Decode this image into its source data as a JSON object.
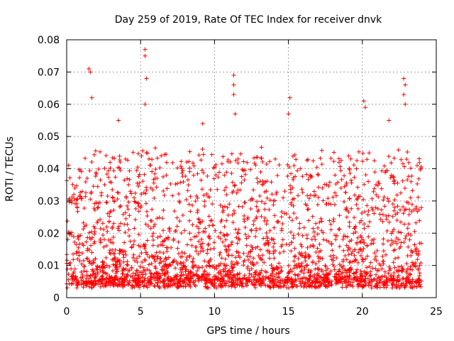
{
  "chart_data": {
    "type": "scatter",
    "title": "Day 259 of 2019, Rate Of TEC Index for receiver dnvk",
    "xlabel": "GPS time / hours",
    "ylabel": "ROTI / TECUs",
    "xlim": [
      0,
      25
    ],
    "ylim": [
      0,
      0.08
    ],
    "xticks": [
      0,
      5,
      10,
      15,
      20,
      25
    ],
    "xtick_labels": [
      "0",
      "5",
      "10",
      "15",
      "20",
      "25"
    ],
    "yticks": [
      0,
      0.01,
      0.02,
      0.03,
      0.04,
      0.05,
      0.06,
      0.07,
      0.08
    ],
    "ytick_labels": [
      "0",
      "0.01",
      "0.02",
      "0.03",
      "0.04",
      "0.05",
      "0.06",
      "0.07",
      "0.08"
    ],
    "grid": true,
    "marker": "+",
    "color": "#ff0000",
    "data_x_range": [
      0,
      24
    ],
    "typical_range": [
      0.004,
      0.045
    ],
    "notable_points": [
      {
        "x": 1.5,
        "y": 0.071
      },
      {
        "x": 1.6,
        "y": 0.07
      },
      {
        "x": 1.7,
        "y": 0.062
      },
      {
        "x": 3.5,
        "y": 0.055
      },
      {
        "x": 5.3,
        "y": 0.077
      },
      {
        "x": 5.3,
        "y": 0.075
      },
      {
        "x": 5.4,
        "y": 0.068
      },
      {
        "x": 5.3,
        "y": 0.06
      },
      {
        "x": 9.2,
        "y": 0.054
      },
      {
        "x": 11.3,
        "y": 0.069
      },
      {
        "x": 11.3,
        "y": 0.066
      },
      {
        "x": 11.3,
        "y": 0.063
      },
      {
        "x": 11.4,
        "y": 0.057
      },
      {
        "x": 15.1,
        "y": 0.062
      },
      {
        "x": 15.0,
        "y": 0.057
      },
      {
        "x": 20.1,
        "y": 0.061
      },
      {
        "x": 20.2,
        "y": 0.059
      },
      {
        "x": 21.8,
        "y": 0.055
      },
      {
        "x": 22.8,
        "y": 0.068
      },
      {
        "x": 22.9,
        "y": 0.066
      },
      {
        "x": 22.8,
        "y": 0.063
      },
      {
        "x": 22.9,
        "y": 0.06
      }
    ]
  }
}
